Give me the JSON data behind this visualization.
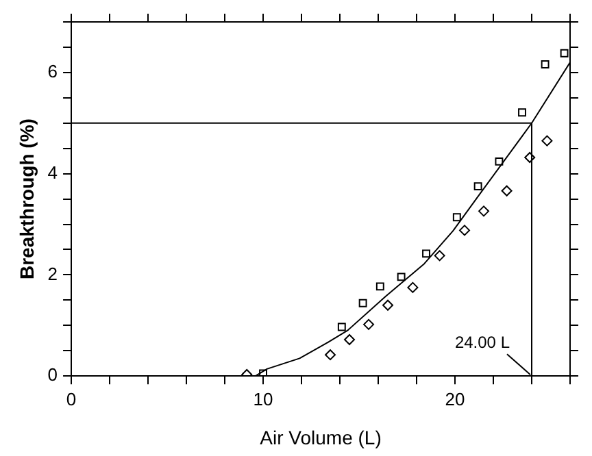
{
  "chart_data": {
    "type": "scatter",
    "xlabel": "Air Volume (L)",
    "ylabel": "Breakthrough (%)",
    "xlim": [
      0,
      26
    ],
    "ylim": [
      0,
      7
    ],
    "xticks": [
      0,
      {
        "value": 2,
        "label": null
      },
      {
        "value": 4,
        "label": null
      },
      {
        "value": 6,
        "label": null
      },
      {
        "value": 8,
        "label": null
      },
      10,
      {
        "value": 12,
        "label": null
      },
      {
        "value": 14,
        "label": null
      },
      {
        "value": 16,
        "label": null
      },
      {
        "value": 18,
        "label": null
      },
      20,
      {
        "value": 22,
        "label": null
      },
      {
        "value": 24,
        "label": null
      },
      {
        "value": 26,
        "label": null
      }
    ],
    "yticks": [
      0,
      {
        "value": 0.5,
        "label": null
      },
      {
        "value": 1,
        "label": null
      },
      {
        "value": 1.5,
        "label": null
      },
      2,
      {
        "value": 2.5,
        "label": null
      },
      {
        "value": 3,
        "label": null
      },
      {
        "value": 3.5,
        "label": null
      },
      4,
      {
        "value": 4.5,
        "label": null
      },
      {
        "value": 5,
        "label": null
      },
      {
        "value": 5.5,
        "label": null
      },
      6,
      {
        "value": 6.5,
        "label": null
      },
      {
        "value": 7,
        "label": null
      }
    ],
    "grid": false,
    "legend": false,
    "series": [
      {
        "marker": "square",
        "color": "#000000",
        "x": [
          10,
          14.1,
          15.2,
          16.1,
          17.2,
          18.5,
          20.1,
          21.2,
          22.3,
          23.5,
          24.7,
          25.7
        ],
        "values": [
          0.05,
          0.97,
          1.44,
          1.77,
          1.96,
          2.42,
          3.14,
          3.75,
          4.24,
          5.21,
          6.16,
          6.38
        ]
      },
      {
        "marker": "diamond",
        "color": "#000000",
        "x": [
          9.15,
          13.5,
          14.5,
          15.5,
          16.5,
          17.8,
          19.2,
          20.5,
          21.5,
          22.7,
          23.9,
          24.8
        ],
        "values": [
          0.03,
          0.42,
          0.72,
          1.02,
          1.4,
          1.75,
          2.38,
          2.88,
          3.26,
          3.66,
          4.32,
          4.65
        ]
      },
      {
        "type": "line",
        "marker": "none",
        "line_style": "solid",
        "color": "#000000",
        "x": [
          9.6,
          10.2,
          11.9,
          13.4,
          14.4,
          16.4,
          18.4,
          19.9,
          21.3,
          24,
          26
        ],
        "values": [
          0,
          0.14,
          0.35,
          0.67,
          0.9,
          1.58,
          2.22,
          2.87,
          3.6,
          5,
          6.2
        ]
      }
    ],
    "ref_lines": [
      {
        "axis": "y",
        "value": 5,
        "label": null,
        "color": "#000000"
      },
      {
        "axis": "x",
        "value": 24,
        "label": "24.00 L",
        "color": "#000000"
      }
    ]
  }
}
